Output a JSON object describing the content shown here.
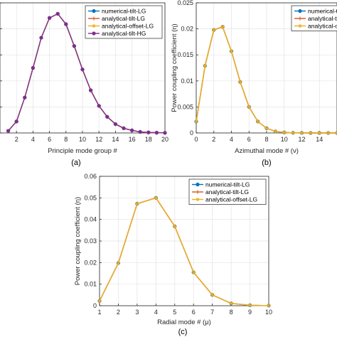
{
  "chart_data": [
    {
      "id": "a",
      "type": "line",
      "caption": "(a)",
      "xlabel": "Principle mode group #",
      "ylabel": "",
      "xlim": [
        0,
        20
      ],
      "ylim": [
        0,
        0.025
      ],
      "x_ticks": [
        2,
        4,
        6,
        8,
        10,
        12,
        14,
        16,
        18,
        20
      ],
      "x_tick_labels": [
        "2",
        "4",
        "6",
        "8",
        "10",
        "12",
        "14",
        "16",
        "18",
        "20"
      ],
      "y_ticks": [
        0,
        0.005,
        0.01,
        0.015,
        0.02,
        0.025
      ],
      "y_tick_labels": [],
      "grid": true,
      "legend": "top-right",
      "x": [
        1,
        2,
        3,
        4,
        5,
        6,
        7,
        8,
        9,
        10,
        11,
        12,
        13,
        14,
        15,
        16,
        17,
        18,
        19,
        20
      ],
      "series": [
        {
          "name": "numerical-tilt-LG",
          "color": "#0072bd",
          "marker": "circle",
          "values": [
            0.0004,
            0.0022,
            0.0068,
            0.0125,
            0.0183,
            0.0221,
            0.0229,
            0.0209,
            0.0167,
            0.0122,
            0.0082,
            0.0052,
            0.0031,
            0.0017,
            0.0009,
            0.0005,
            0.0002,
            0.0001,
            5e-05,
            2e-05
          ]
        },
        {
          "name": "analytical-tilt-LG",
          "color": "#d95319",
          "marker": "plus",
          "values": [
            0.0004,
            0.0022,
            0.0068,
            0.0125,
            0.0183,
            0.0221,
            0.0229,
            0.0209,
            0.0167,
            0.0122,
            0.0082,
            0.0052,
            0.0031,
            0.0017,
            0.0009,
            0.0005,
            0.0002,
            0.0001,
            5e-05,
            2e-05
          ]
        },
        {
          "name": "analytical-offset-LG",
          "color": "#edb120",
          "marker": "star",
          "values": [
            0.0004,
            0.0022,
            0.0068,
            0.0125,
            0.0183,
            0.0221,
            0.0229,
            0.0209,
            0.0167,
            0.0122,
            0.0082,
            0.0052,
            0.0031,
            0.0017,
            0.0009,
            0.0005,
            0.0002,
            0.0001,
            5e-05,
            2e-05
          ]
        },
        {
          "name": "analytical-tilt-HG",
          "color": "#7e2f8e",
          "marker": "circle",
          "values": [
            0.0004,
            0.0022,
            0.0068,
            0.0125,
            0.0183,
            0.0221,
            0.0229,
            0.0209,
            0.0167,
            0.0122,
            0.0082,
            0.0052,
            0.0031,
            0.0017,
            0.0009,
            0.0005,
            0.0002,
            0.0001,
            5e-05,
            2e-05
          ]
        }
      ],
      "line_order": [
        0,
        1,
        2,
        3
      ]
    },
    {
      "id": "b",
      "type": "line",
      "caption": "(b)",
      "xlabel": "Azimuthal mode # (ν)",
      "ylabel": "Power coupling coefficient (η)",
      "xlim": [
        0,
        16
      ],
      "ylim": [
        0,
        0.025
      ],
      "x_ticks": [
        0,
        2,
        4,
        6,
        8,
        10,
        12,
        14
      ],
      "x_tick_labels": [
        "0",
        "2",
        "4",
        "6",
        "8",
        "10",
        "12",
        "14"
      ],
      "y_ticks": [
        0,
        0.005,
        0.01,
        0.015,
        0.02,
        0.025
      ],
      "y_tick_labels": [
        "0",
        "0.005",
        "0.01",
        "0.015",
        "0.02",
        "0.025"
      ],
      "grid": true,
      "legend": "top-right",
      "x": [
        0,
        1,
        2,
        3,
        4,
        5,
        6,
        7,
        8,
        9,
        10,
        11,
        12,
        13,
        14,
        15,
        16
      ],
      "series": [
        {
          "name": "numerical-tilt-LG",
          "color": "#0072bd",
          "marker": "circle",
          "values": [
            0.0022,
            0.0129,
            0.0198,
            0.0204,
            0.0157,
            0.0098,
            0.005,
            0.0022,
            0.0009,
            0.0003,
            0.0001,
            3e-05,
            1e-05,
            0,
            0,
            0,
            0
          ]
        },
        {
          "name": "analytical-tilt-LG",
          "color": "#d95319",
          "marker": "plus",
          "values": [
            0.0022,
            0.0129,
            0.0198,
            0.0204,
            0.0157,
            0.0098,
            0.005,
            0.0022,
            0.0009,
            0.0003,
            0.0001,
            3e-05,
            1e-05,
            0,
            0,
            0,
            0
          ]
        },
        {
          "name": "analytical-offset-LG",
          "color": "#edb120",
          "marker": "star",
          "values": [
            0.0022,
            0.0129,
            0.0198,
            0.0204,
            0.0157,
            0.0098,
            0.005,
            0.0022,
            0.0009,
            0.0003,
            0.0001,
            3e-05,
            1e-05,
            0,
            0,
            0,
            0
          ]
        }
      ],
      "line_order": [
        0,
        1,
        2
      ]
    },
    {
      "id": "c",
      "type": "line",
      "caption": "(c)",
      "xlabel": "Radial mode # (μ)",
      "ylabel": "Power coupling coefficient (η)",
      "xlim": [
        1,
        10
      ],
      "ylim": [
        0,
        0.06
      ],
      "x_ticks": [
        1,
        2,
        3,
        4,
        5,
        6,
        7,
        8,
        9,
        10
      ],
      "x_tick_labels": [
        "1",
        "2",
        "3",
        "4",
        "5",
        "6",
        "7",
        "8",
        "9",
        "10"
      ],
      "y_ticks": [
        0,
        0.01,
        0.02,
        0.03,
        0.04,
        0.05,
        0.06
      ],
      "y_tick_labels": [
        "0",
        "0.01",
        "0.02",
        "0.03",
        "0.04",
        "0.05",
        "0.06"
      ],
      "grid": true,
      "legend": "top-right",
      "x": [
        1,
        2,
        3,
        4,
        5,
        6,
        7,
        8,
        9,
        10
      ],
      "series": [
        {
          "name": "numerical-tilt-LG",
          "color": "#0072bd",
          "marker": "circle",
          "values": [
            0.0022,
            0.0198,
            0.0473,
            0.05,
            0.0368,
            0.0155,
            0.005,
            0.0011,
            0.0002,
            5e-05
          ]
        },
        {
          "name": "analytical-tilt-LG",
          "color": "#d95319",
          "marker": "plus",
          "values": [
            0.0022,
            0.0198,
            0.0473,
            0.05,
            0.0368,
            0.0155,
            0.005,
            0.0011,
            0.0002,
            5e-05
          ]
        },
        {
          "name": "analytical-offset-LG",
          "color": "#edb120",
          "marker": "star",
          "values": [
            0.0022,
            0.0198,
            0.0473,
            0.05,
            0.0368,
            0.0155,
            0.005,
            0.0011,
            0.0002,
            5e-05
          ]
        }
      ],
      "line_order": [
        0,
        1,
        2
      ]
    }
  ]
}
